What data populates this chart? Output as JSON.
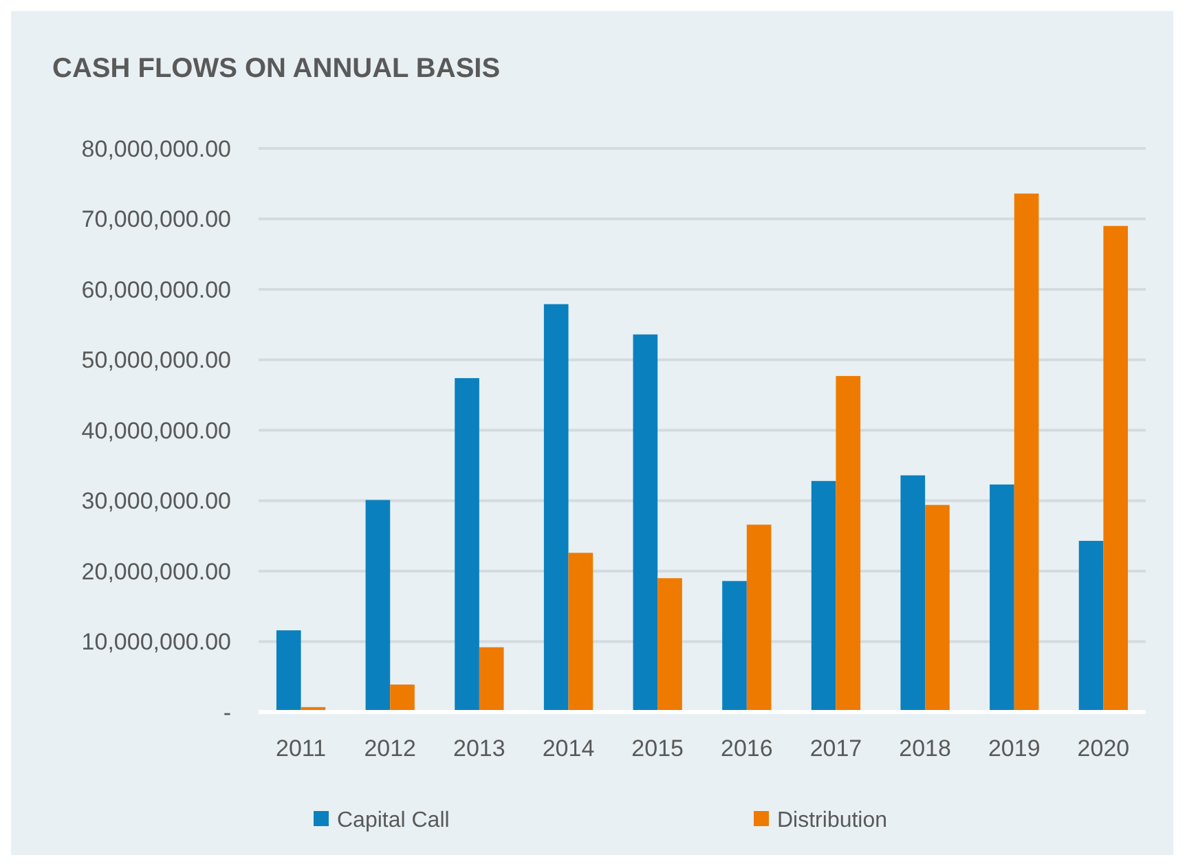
{
  "chart_data": {
    "type": "bar",
    "title": "CASH FLOWS ON ANNUAL BASIS",
    "categories": [
      "2011",
      "2012",
      "2013",
      "2014",
      "2015",
      "2016",
      "2017",
      "2018",
      "2019",
      "2020"
    ],
    "series": [
      {
        "name": "Capital Call",
        "color": "#0b80be",
        "values": [
          11600000,
          30100000,
          47400000,
          57900000,
          53600000,
          18600000,
          32800000,
          33600000,
          32300000,
          24300000
        ]
      },
      {
        "name": "Distribution",
        "color": "#ef7a00",
        "values": [
          700000,
          3900000,
          9200000,
          22600000,
          19000000,
          26600000,
          47700000,
          29400000,
          73600000,
          69000000
        ]
      }
    ],
    "ylim": [
      0,
      80000000
    ],
    "yticks": [
      {
        "value": 0,
        "label": "-"
      },
      {
        "value": 10000000,
        "label": "10,000,000.00"
      },
      {
        "value": 20000000,
        "label": "20,000,000.00"
      },
      {
        "value": 30000000,
        "label": "30,000,000.00"
      },
      {
        "value": 40000000,
        "label": "40,000,000.00"
      },
      {
        "value": 50000000,
        "label": "50,000,000.00"
      },
      {
        "value": 60000000,
        "label": "60,000,000.00"
      },
      {
        "value": 70000000,
        "label": "70,000,000.00"
      },
      {
        "value": 80000000,
        "label": "80,000,000.00"
      }
    ],
    "grid": "y",
    "legend": "bottom"
  }
}
